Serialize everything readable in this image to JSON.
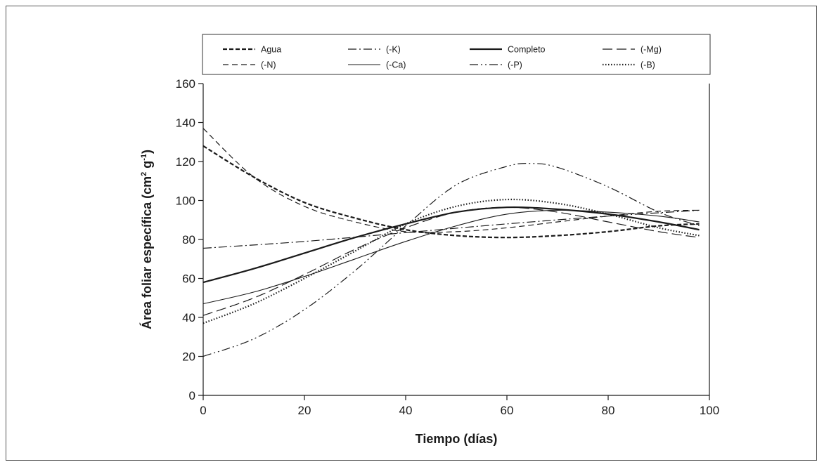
{
  "chart_data": {
    "type": "line",
    "xlabel": "Tiempo (días)",
    "ylabel_main": "Área foliar específica (cm",
    "ylabel_sup1": "2",
    "ylabel_mid": " g",
    "ylabel_sup2": "-1",
    "ylabel_end": ")",
    "xlim": [
      0,
      100
    ],
    "ylim": [
      0,
      160
    ],
    "x_ticks": [
      "0",
      "20",
      "40",
      "60",
      "80",
      "100"
    ],
    "y_ticks": [
      "0",
      "20",
      "40",
      "60",
      "80",
      "100",
      "120",
      "140",
      "160"
    ],
    "grid": false,
    "legend_position": "top",
    "series": [
      {
        "name": "Agua",
        "dash": "6 3",
        "width": 2.2,
        "x": [
          0,
          10,
          20,
          30,
          40,
          50,
          60,
          70,
          80,
          90,
          98
        ],
        "y": [
          128,
          112,
          99,
          91,
          85,
          82,
          81,
          82,
          84,
          87,
          88
        ]
      },
      {
        "name": "(-K)",
        "dash": "12 4 2 4",
        "width": 1.2,
        "x": [
          0,
          20,
          40,
          60,
          80,
          98
        ],
        "y": [
          75.5,
          79,
          83.5,
          88,
          92,
          95
        ]
      },
      {
        "name": "Completo",
        "dash": "",
        "width": 2.2,
        "x": [
          0,
          10,
          20,
          30,
          40,
          50,
          60,
          70,
          80,
          90,
          98
        ],
        "y": [
          58,
          65,
          73,
          81,
          88,
          94,
          96.5,
          95.5,
          93,
          89,
          85
        ]
      },
      {
        "name": "(-Mg)",
        "dash": "14 6",
        "width": 1.2,
        "x": [
          0,
          10,
          20,
          30,
          40,
          50,
          60,
          70,
          80,
          90,
          98
        ],
        "y": [
          41,
          50,
          62,
          75,
          86,
          94,
          96.5,
          94,
          89,
          84,
          81
        ]
      },
      {
        "name": "(-N)",
        "dash": "8 5",
        "width": 1.2,
        "x": [
          0,
          10,
          20,
          30,
          40,
          50,
          60,
          70,
          80,
          90,
          98
        ],
        "y": [
          137,
          112,
          97,
          89,
          84,
          84,
          86,
          89,
          92,
          94.5,
          95
        ]
      },
      {
        "name": "(-Ca)",
        "dash": "",
        "width": 1.1,
        "x": [
          0,
          10,
          20,
          30,
          40,
          50,
          60,
          70,
          80,
          90,
          98
        ],
        "y": [
          47,
          53,
          61,
          70,
          79,
          87,
          93,
          95,
          94,
          92,
          89
        ]
      },
      {
        "name": "(-P)",
        "dash": "12 4 2 4 2 4",
        "width": 1.2,
        "x": [
          0,
          10,
          20,
          30,
          40,
          50,
          60,
          65,
          70,
          80,
          90,
          98
        ],
        "y": [
          20,
          29,
          44,
          64,
          87,
          108,
          117.5,
          119,
          117,
          107,
          94,
          87
        ]
      },
      {
        "name": "(-B)",
        "dash": "1.5 2.5",
        "width": 2.2,
        "x": [
          0,
          10,
          20,
          30,
          40,
          50,
          60,
          70,
          80,
          90,
          98
        ],
        "y": [
          37,
          47,
          60,
          74,
          88,
          97,
          100.5,
          98.5,
          93,
          86,
          82
        ]
      }
    ]
  }
}
